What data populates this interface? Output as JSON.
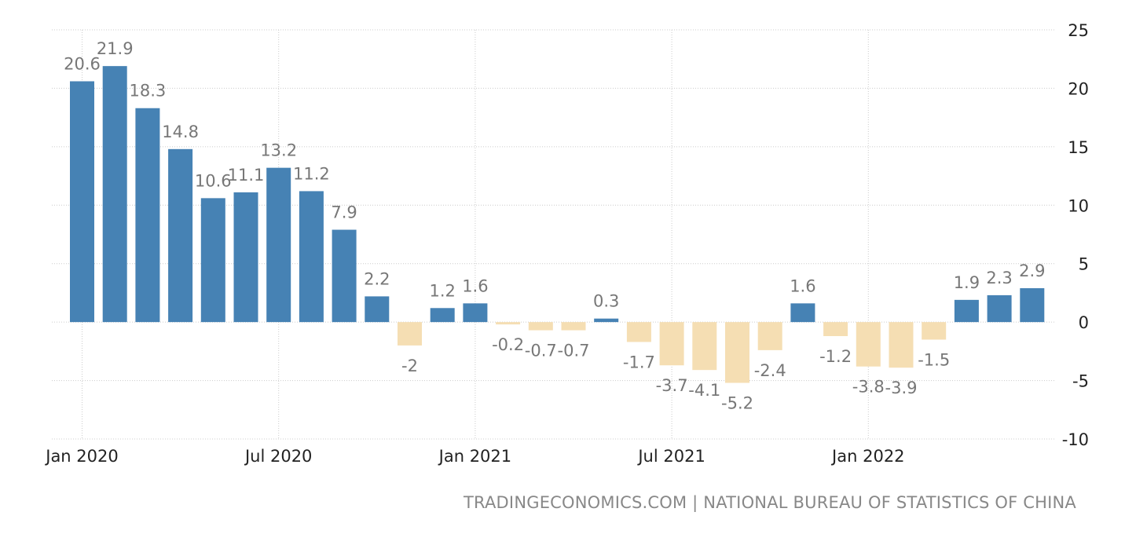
{
  "chart_data": {
    "type": "bar",
    "title": "",
    "xlabel": "",
    "ylabel": "",
    "ylim": [
      -10,
      25
    ],
    "yticks": [
      25,
      20,
      15,
      10,
      5,
      0,
      -5,
      -10
    ],
    "grid": true,
    "categories": [
      "Jan 2020",
      "Feb 2020",
      "Mar 2020",
      "Apr 2020",
      "May 2020",
      "Jun 2020",
      "Jul 2020",
      "Aug 2020",
      "Sep 2020",
      "Oct 2020",
      "Nov 2020",
      "Dec 2020",
      "Jan 2021",
      "Feb 2021",
      "Mar 2021",
      "Apr 2021",
      "May 2021",
      "Jun 2021",
      "Jul 2021",
      "Aug 2021",
      "Sep 2021",
      "Oct 2021",
      "Nov 2021",
      "Dec 2021",
      "Jan 2022",
      "Feb 2022",
      "Mar 2022",
      "Apr 2022",
      "May 2022",
      "Jun 2022"
    ],
    "values": [
      20.6,
      21.9,
      18.3,
      14.8,
      10.6,
      11.1,
      13.2,
      11.2,
      7.9,
      2.2,
      -2,
      1.2,
      1.6,
      -0.2,
      -0.7,
      -0.7,
      0.3,
      -1.7,
      -3.7,
      -4.1,
      -5.2,
      -2.4,
      1.6,
      -1.2,
      -3.8,
      -3.9,
      -1.5,
      1.9,
      2.3,
      2.9
    ],
    "xtick_labels": [
      {
        "index": 0,
        "label": "Jan 2020"
      },
      {
        "index": 6,
        "label": "Jul 2020"
      },
      {
        "index": 12,
        "label": "Jan 2021"
      },
      {
        "index": 18,
        "label": "Jul 2021"
      },
      {
        "index": 24,
        "label": "Jan 2022"
      }
    ],
    "colors": {
      "positive": "#4682b4",
      "negative": "#f5deb3",
      "label": "#777777",
      "grid": "#cccccc"
    }
  },
  "source": {
    "text": "TRADINGECONOMICS.COM | NATIONAL BUREAU OF STATISTICS OF CHINA"
  }
}
